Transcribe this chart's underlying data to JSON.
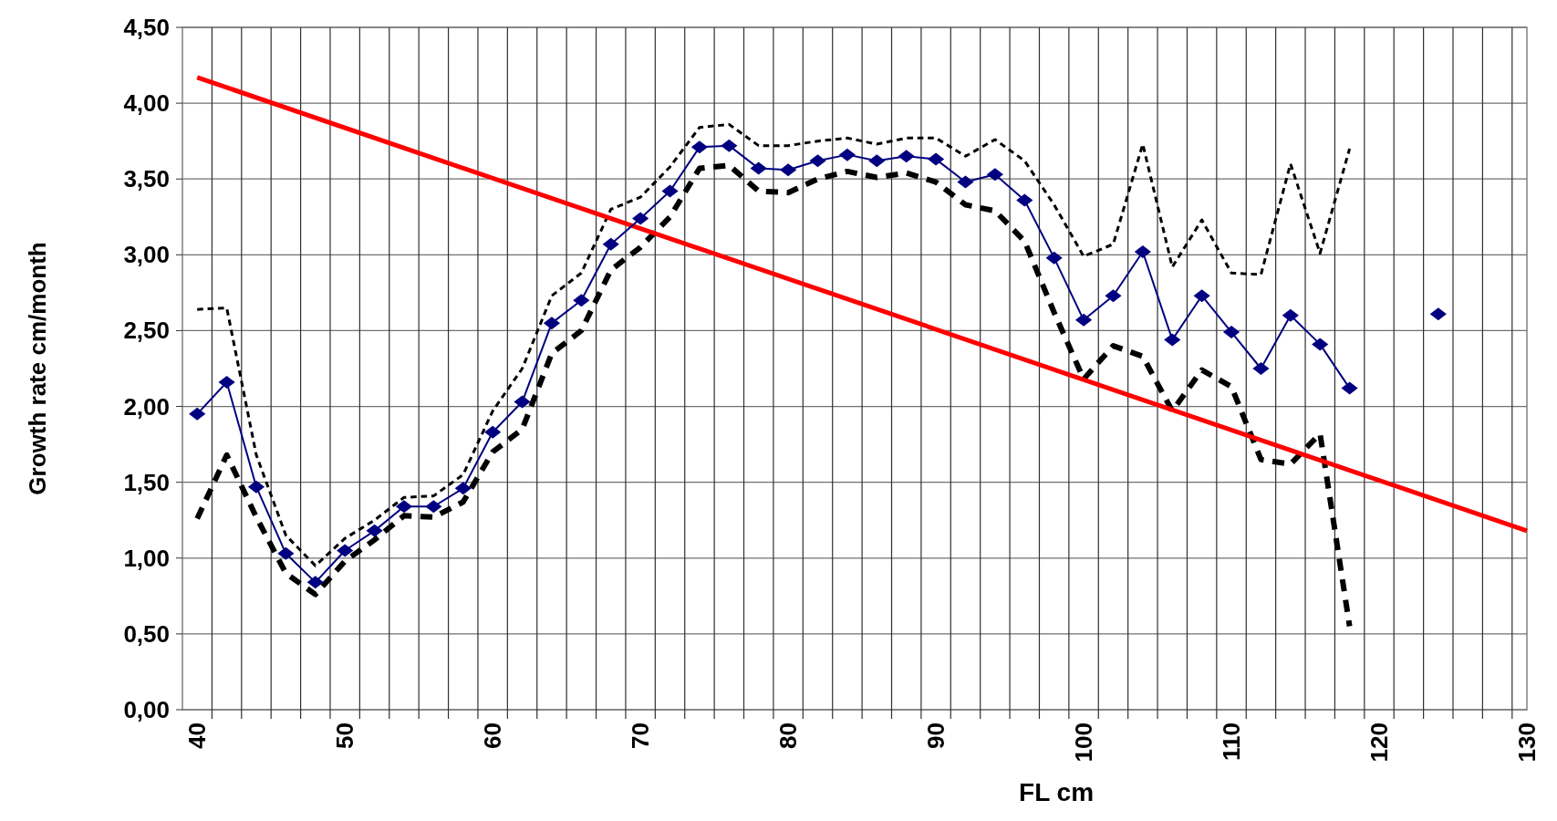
{
  "chart_data": {
    "type": "line",
    "xlabel": "FL cm",
    "ylabel": "Growth rate cm/month",
    "xlim": [
      39,
      130
    ],
    "xticks": [
      40,
      {
        "value": 41,
        "label": null
      },
      {
        "value": 43,
        "label": null
      },
      {
        "value": 45,
        "label": null
      },
      {
        "value": 47,
        "label": null
      },
      {
        "value": 49,
        "label": null
      },
      50,
      {
        "value": 51,
        "label": null
      },
      {
        "value": 53,
        "label": null
      },
      {
        "value": 55,
        "label": null
      },
      {
        "value": 57,
        "label": null
      },
      {
        "value": 59,
        "label": null
      },
      60,
      {
        "value": 61,
        "label": null
      },
      {
        "value": 63,
        "label": null
      },
      {
        "value": 65,
        "label": null
      },
      {
        "value": 67,
        "label": null
      },
      {
        "value": 69,
        "label": null
      },
      70,
      {
        "value": 71,
        "label": null
      },
      {
        "value": 73,
        "label": null
      },
      {
        "value": 75,
        "label": null
      },
      {
        "value": 77,
        "label": null
      },
      {
        "value": 79,
        "label": null
      },
      80,
      {
        "value": 81,
        "label": null
      },
      {
        "value": 83,
        "label": null
      },
      {
        "value": 85,
        "label": null
      },
      {
        "value": 87,
        "label": null
      },
      {
        "value": 89,
        "label": null
      },
      90,
      {
        "value": 91,
        "label": null
      },
      {
        "value": 93,
        "label": null
      },
      {
        "value": 95,
        "label": null
      },
      {
        "value": 97,
        "label": null
      },
      {
        "value": 99,
        "label": null
      },
      100,
      {
        "value": 101,
        "label": null
      },
      {
        "value": 103,
        "label": null
      },
      {
        "value": 105,
        "label": null
      },
      {
        "value": 107,
        "label": null
      },
      {
        "value": 109,
        "label": null
      },
      110,
      {
        "value": 111,
        "label": null
      },
      {
        "value": 113,
        "label": null
      },
      {
        "value": 115,
        "label": null
      },
      {
        "value": 117,
        "label": null
      },
      {
        "value": 119,
        "label": null
      },
      120,
      {
        "value": 121,
        "label": null
      },
      {
        "value": 123,
        "label": null
      },
      {
        "value": 125,
        "label": null
      },
      {
        "value": 127,
        "label": null
      },
      {
        "value": 129,
        "label": null
      },
      130
    ],
    "ylim": [
      0,
      4.5
    ],
    "yticks": [
      {
        "value": 0,
        "label": "0,00"
      },
      {
        "value": 0.5,
        "label": "0,50"
      },
      {
        "value": 1,
        "label": "1,00"
      },
      {
        "value": 1.5,
        "label": "1,50"
      },
      {
        "value": 2,
        "label": "2,00"
      },
      {
        "value": 2.5,
        "label": "2,50"
      },
      {
        "value": 3,
        "label": "3,00"
      },
      {
        "value": 3.5,
        "label": "3,50"
      },
      {
        "value": 4,
        "label": "4,00"
      },
      {
        "value": 4.5,
        "label": "4,50"
      }
    ],
    "grid": true,
    "x": [
      40,
      42,
      44,
      46,
      48,
      50,
      52,
      54,
      56,
      58,
      60,
      62,
      64,
      66,
      68,
      70,
      72,
      74,
      76,
      78,
      80,
      82,
      84,
      86,
      88,
      90,
      92,
      94,
      96,
      98,
      100,
      102,
      104,
      106,
      108,
      110,
      112,
      114,
      116,
      118,
      120,
      122,
      124
    ],
    "series": [
      {
        "color": "#000000",
        "line_style": "dashed",
        "marker": "none",
        "values": [
          2.64,
          2.65,
          1.68,
          1.15,
          0.95,
          1.13,
          1.25,
          1.4,
          1.41,
          1.55,
          1.97,
          2.25,
          2.73,
          2.88,
          3.3,
          3.38,
          3.58,
          3.84,
          3.86,
          3.72,
          3.72,
          3.75,
          3.77,
          3.73,
          3.77,
          3.77,
          3.65,
          3.76,
          3.62,
          3.33,
          2.99,
          3.07,
          3.73,
          2.92,
          3.23,
          2.88,
          2.87,
          3.6,
          3.01,
          3.7,
          null,
          null,
          null
        ]
      },
      {
        "color": "#000000",
        "line_style": "dashed",
        "marker": "none",
        "values": [
          1.26,
          1.68,
          1.27,
          0.9,
          0.76,
          0.98,
          1.12,
          1.28,
          1.27,
          1.37,
          1.7,
          1.85,
          2.35,
          2.5,
          2.9,
          3.05,
          3.25,
          3.57,
          3.59,
          3.42,
          3.41,
          3.5,
          3.55,
          3.51,
          3.54,
          3.48,
          3.33,
          3.29,
          3.09,
          2.62,
          2.18,
          2.4,
          2.33,
          1.97,
          2.24,
          2.13,
          1.65,
          1.62,
          1.82,
          0.55,
          null,
          null,
          null
        ]
      },
      {
        "color": "#ff0000",
        "line_style": "solid",
        "marker": "none",
        "x": [
          40,
          130
        ],
        "values": [
          4.17,
          1.18
        ]
      },
      {
        "color": "#000080",
        "line_style": "solid",
        "marker": "diamond",
        "values": [
          1.95,
          2.16,
          1.47,
          1.03,
          0.84,
          1.05,
          1.18,
          1.34,
          1.34,
          1.46,
          1.83,
          2.03,
          2.55,
          2.7,
          3.07,
          3.24,
          3.42,
          3.71,
          3.72,
          3.57,
          3.56,
          3.62,
          3.66,
          3.62,
          3.65,
          3.63,
          3.48,
          3.53,
          3.36,
          2.98,
          2.57,
          2.73,
          3.02,
          2.44,
          2.73,
          2.49,
          2.25,
          2.6,
          2.41,
          2.12,
          null,
          null,
          2.61
        ]
      }
    ]
  }
}
